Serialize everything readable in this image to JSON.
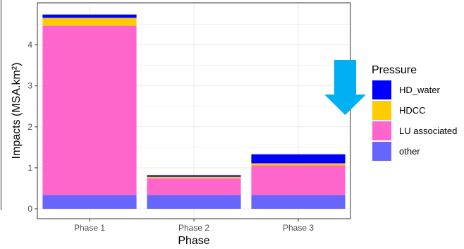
{
  "chart_data": {
    "type": "bar",
    "stacked": true,
    "xlabel": "Phase",
    "ylabel": "Impacts (MSA.km²)",
    "categories": [
      "Phase 1",
      "Phase 2",
      "Phase 3"
    ],
    "ylim": [
      0,
      4.85
    ],
    "yticks": [
      0,
      1,
      2,
      3,
      4
    ],
    "grid": true,
    "legend": {
      "title": "Pressure",
      "position": "right",
      "entries": [
        "HD_water",
        "HDCC",
        "LU associated",
        "other"
      ]
    },
    "series": [
      {
        "name": "other",
        "color": "#6666FF",
        "values": [
          0.34,
          0.34,
          0.34
        ]
      },
      {
        "name": "LU associated",
        "color": "#FF66CC",
        "values": [
          4.13,
          0.4,
          0.72
        ]
      },
      {
        "name": "HDCC",
        "color": "#FFCC00",
        "values": [
          0.19,
          0.04,
          0.05
        ]
      },
      {
        "name": "HD_water",
        "color": "#0000FF",
        "values": [
          0.08,
          0.04,
          0.22
        ]
      }
    ],
    "annotation": {
      "shape": "down-arrow",
      "color": "#00B0F0"
    }
  }
}
